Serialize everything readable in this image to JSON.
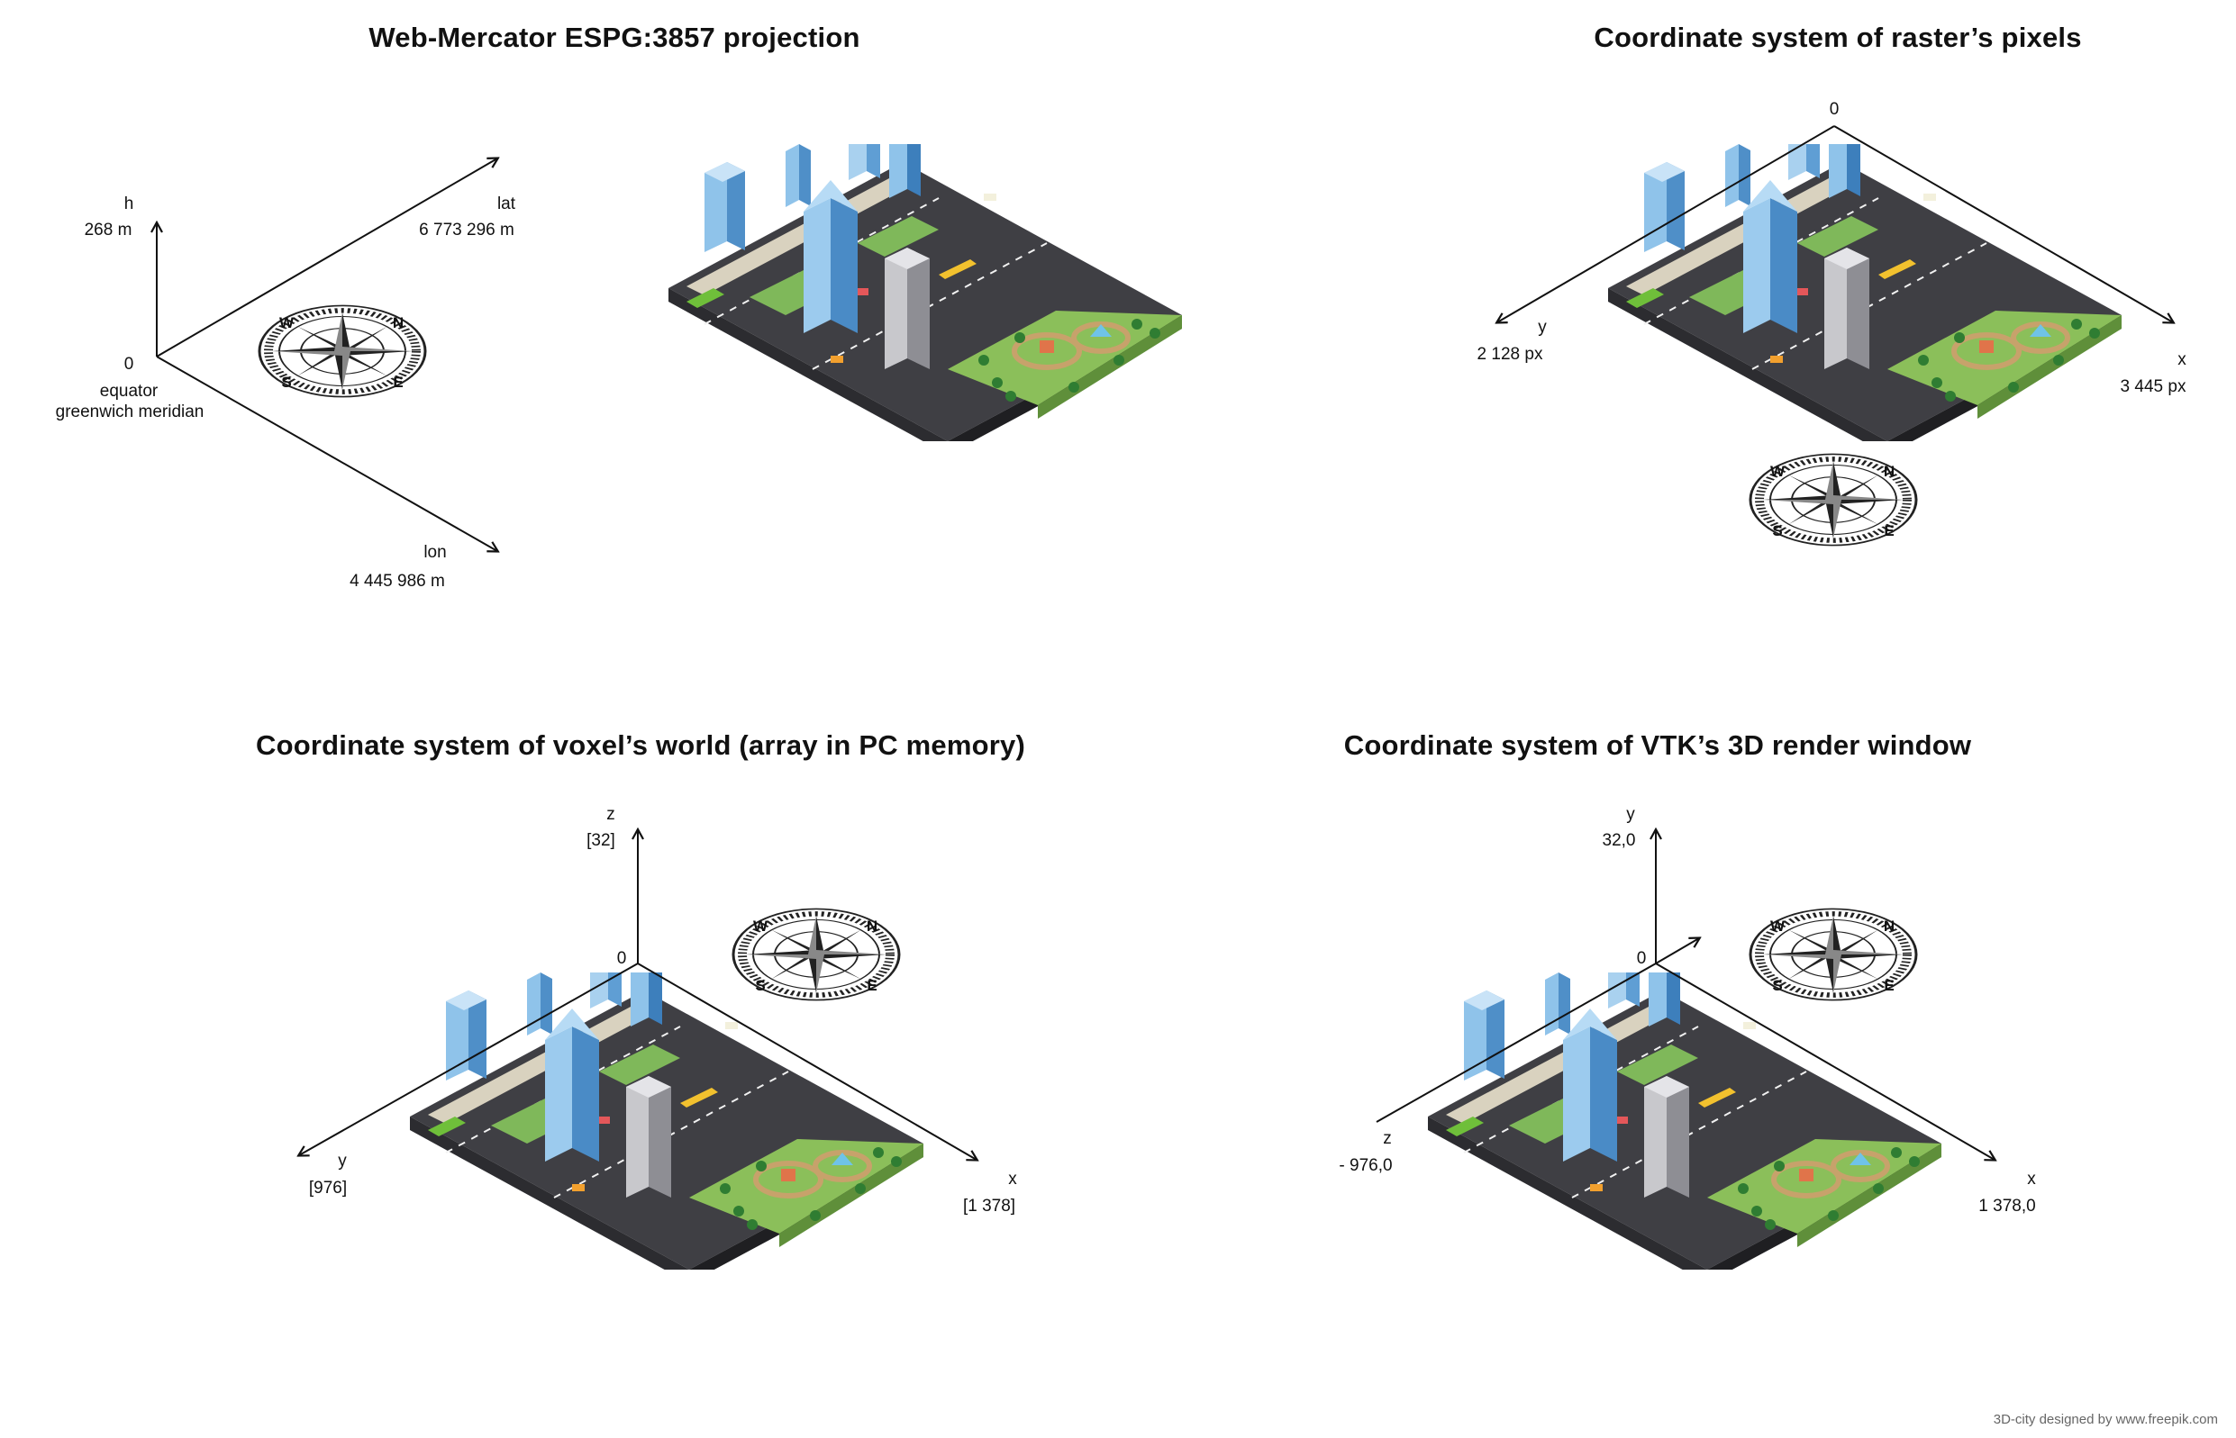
{
  "panels": [
    {
      "title": "Web-Mercator  ESPG:3857  projection",
      "axes": {
        "h": {
          "name": "h",
          "value": "268 m"
        },
        "lat": {
          "name": "lat",
          "value": "6 773 296 m"
        },
        "lon": {
          "name": "lon",
          "value": "4 445 986 m"
        },
        "origin": {
          "name": "0",
          "note1": "equator",
          "note2": "greenwich meridian"
        }
      }
    },
    {
      "title": "Coordinate system of raster’s pixels",
      "axes": {
        "origin": "0",
        "y": {
          "name": "y",
          "value": "2 128 px"
        },
        "x": {
          "name": "x",
          "value": "3 445 px"
        }
      }
    },
    {
      "title": "Coordinate system of voxel’s world (array in PC memory)",
      "axes": {
        "origin": "0",
        "z": {
          "name": "z",
          "value": "[32]"
        },
        "y": {
          "name": "y",
          "value": "[976]"
        },
        "x": {
          "name": "x",
          "value": "[1 378]"
        }
      }
    },
    {
      "title": "Coordinate system of VTK’s 3D render window",
      "axes": {
        "origin": "0",
        "y": {
          "name": "y",
          "value": "32,0"
        },
        "z": {
          "name": "z",
          "value": "- 976,0"
        },
        "x": {
          "name": "x",
          "value": "1 378,0"
        }
      }
    }
  ],
  "compass": {
    "letters": [
      "N",
      "E",
      "S",
      "W"
    ],
    "icon": "compass-rose-icon"
  },
  "city": {
    "icon": "isometric-city-icon"
  },
  "credit": "3D-city designed by www.freepik.com",
  "colors": {
    "ground": "#8bbf5a",
    "road": "#4a4a4e",
    "glass": "#5aa9e6",
    "sidewalk": "#d9d2bf"
  }
}
